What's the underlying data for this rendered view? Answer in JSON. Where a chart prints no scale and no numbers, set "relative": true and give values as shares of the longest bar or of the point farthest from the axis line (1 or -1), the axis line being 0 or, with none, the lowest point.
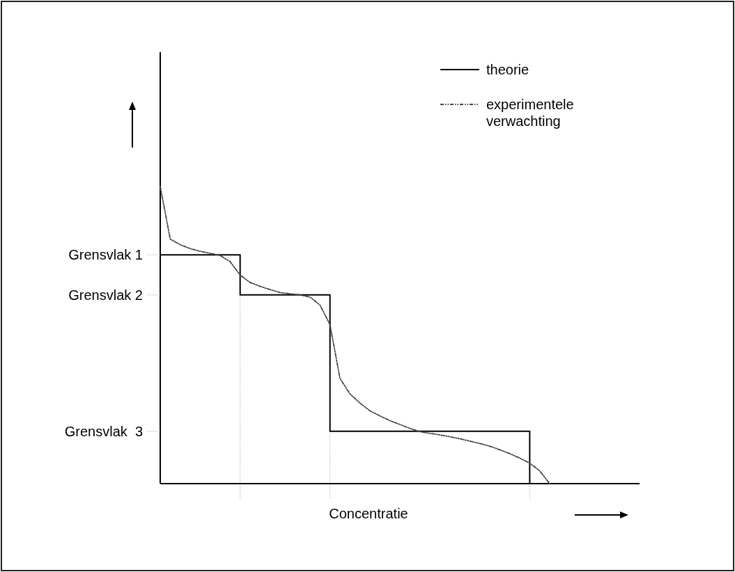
{
  "chart_data": {
    "type": "line",
    "relative": true,
    "xlabel": "Concentratie",
    "categories": [
      null,
      null,
      null,
      null,
      null,
      null,
      null,
      null,
      null,
      null,
      null,
      null,
      null,
      null,
      null,
      null,
      null,
      null,
      null,
      null,
      null,
      null,
      null,
      null,
      null,
      null,
      null,
      null,
      null,
      null,
      null,
      null,
      null,
      null,
      null,
      null,
      null,
      null,
      null,
      null,
      null,
      null,
      null,
      null,
      null,
      null,
      null,
      null,
      null
    ],
    "annotations": [
      "Grensvlak 1",
      "Grensvlak 2",
      "Grensvlak  3"
    ],
    "legend": "top right",
    "series": [
      {
        "name": "theorie",
        "type": "step",
        "color": "#000000",
        "line_style": "solid",
        "values": [
          0.77,
          0.77,
          0.77,
          0.77,
          0.77,
          0.77,
          0.77,
          0.77,
          0.635,
          0.635,
          0.635,
          0.635,
          0.635,
          0.635,
          0.635,
          0.635,
          0.635,
          0.176,
          0.176,
          0.176,
          0.176,
          0.176,
          0.176,
          0.176,
          0.176,
          0.176,
          0.176,
          0.176,
          0.176,
          0.176,
          0.176,
          0.176,
          0.176,
          0.176,
          0.176,
          0.176,
          0.176,
          0,
          null,
          null,
          null,
          null,
          null,
          null,
          null,
          null,
          null,
          null,
          null
        ]
      },
      {
        "name": "experimentele verwachting",
        "color": "#444444",
        "line_style": "dashed",
        "values": [
          1,
          0.823,
          0.804,
          0.791,
          0.782,
          0.775,
          0.768,
          0.747,
          0.702,
          0.677,
          0.664,
          0.653,
          0.643,
          0.639,
          0.635,
          0.628,
          0.601,
          0.535,
          0.354,
          0.302,
          0.271,
          0.245,
          0.228,
          0.212,
          0.199,
          0.186,
          0.175,
          0.169,
          0.164,
          0.158,
          0.151,
          0.143,
          0.135,
          0.126,
          0.114,
          0.101,
          0.086,
          0.069,
          0.043,
          0,
          null,
          null,
          null,
          null,
          null,
          null,
          null,
          null,
          null
        ]
      }
    ]
  }
}
